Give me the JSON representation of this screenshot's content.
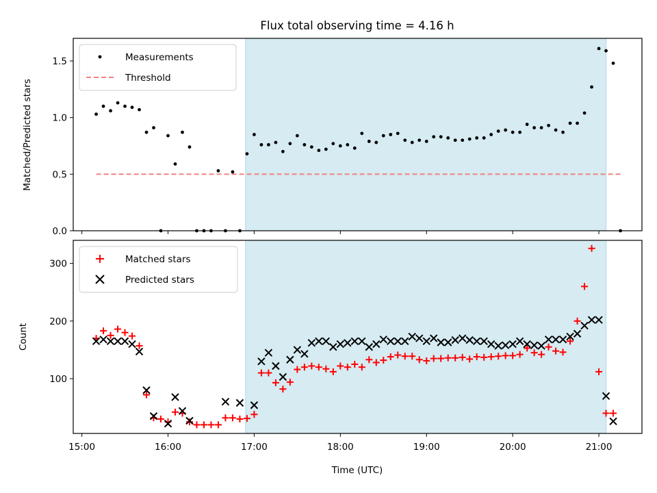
{
  "chart_data": {
    "type": "scatter",
    "title": "Flux total observing time = 4.16 h",
    "highlight_color": "#add8e6",
    "x_ticks": [
      "15:00",
      "16:00",
      "17:00",
      "18:00",
      "19:00",
      "20:00",
      "21:00"
    ],
    "xlabel": "Time (UTC)",
    "xlim": [
      "14:54",
      "21:30"
    ],
    "shaded_interval": [
      "16:54",
      "21:05"
    ],
    "panels": [
      {
        "ylabel": "Matched/Predicted stars",
        "ylim": [
          0,
          1.7
        ],
        "y_ticks": [
          "0.0",
          "0.5",
          "1.0",
          "1.5"
        ],
        "legend_position": "top-left",
        "series": [
          {
            "name": "Measurements",
            "marker": "dot",
            "color": "#000000",
            "points": [
              [
                "15:10",
                1.03
              ],
              [
                "15:15",
                1.1
              ],
              [
                "15:20",
                1.06
              ],
              [
                "15:25",
                1.13
              ],
              [
                "15:30",
                1.1
              ],
              [
                "15:35",
                1.09
              ],
              [
                "15:40",
                1.07
              ],
              [
                "15:45",
                0.87
              ],
              [
                "15:50",
                0.91
              ],
              [
                "15:55",
                0.0
              ],
              [
                "16:00",
                0.84
              ],
              [
                "16:05",
                0.59
              ],
              [
                "16:10",
                0.87
              ],
              [
                "16:15",
                0.74
              ],
              [
                "16:20",
                0.0
              ],
              [
                "16:25",
                0.0
              ],
              [
                "16:30",
                0.0
              ],
              [
                "16:35",
                0.53
              ],
              [
                "16:40",
                0.0
              ],
              [
                "16:45",
                0.52
              ],
              [
                "16:50",
                0.0
              ],
              [
                "16:55",
                0.68
              ],
              [
                "17:00",
                0.85
              ],
              [
                "17:05",
                0.76
              ],
              [
                "17:10",
                0.76
              ],
              [
                "17:15",
                0.78
              ],
              [
                "17:20",
                0.7
              ],
              [
                "17:25",
                0.77
              ],
              [
                "17:30",
                0.84
              ],
              [
                "17:35",
                0.76
              ],
              [
                "17:40",
                0.74
              ],
              [
                "17:45",
                0.71
              ],
              [
                "17:50",
                0.72
              ],
              [
                "17:55",
                0.77
              ],
              [
                "18:00",
                0.75
              ],
              [
                "18:05",
                0.76
              ],
              [
                "18:10",
                0.73
              ],
              [
                "18:15",
                0.86
              ],
              [
                "18:20",
                0.79
              ],
              [
                "18:25",
                0.78
              ],
              [
                "18:30",
                0.84
              ],
              [
                "18:35",
                0.85
              ],
              [
                "18:40",
                0.86
              ],
              [
                "18:45",
                0.8
              ],
              [
                "18:50",
                0.78
              ],
              [
                "18:55",
                0.8
              ],
              [
                "19:00",
                0.79
              ],
              [
                "19:05",
                0.83
              ],
              [
                "19:10",
                0.83
              ],
              [
                "19:15",
                0.82
              ],
              [
                "19:20",
                0.8
              ],
              [
                "19:25",
                0.8
              ],
              [
                "19:30",
                0.81
              ],
              [
                "19:35",
                0.82
              ],
              [
                "19:40",
                0.82
              ],
              [
                "19:45",
                0.85
              ],
              [
                "19:50",
                0.88
              ],
              [
                "19:55",
                0.89
              ],
              [
                "20:00",
                0.87
              ],
              [
                "20:05",
                0.87
              ],
              [
                "20:10",
                0.94
              ],
              [
                "20:15",
                0.91
              ],
              [
                "20:20",
                0.91
              ],
              [
                "20:25",
                0.93
              ],
              [
                "20:30",
                0.89
              ],
              [
                "20:35",
                0.87
              ],
              [
                "20:40",
                0.95
              ],
              [
                "20:45",
                0.95
              ],
              [
                "20:50",
                1.04
              ],
              [
                "20:55",
                1.27
              ],
              [
                "21:00",
                1.61
              ],
              [
                "21:05",
                1.59
              ],
              [
                "21:10",
                1.48
              ],
              [
                "21:15",
                0.0
              ]
            ]
          },
          {
            "name": "Threshold",
            "marker": "dashed-line",
            "color": "#f08080",
            "value": 0.5,
            "x_range": [
              "15:10",
              "21:15"
            ]
          }
        ]
      },
      {
        "ylabel": "Count",
        "ylim": [
          5,
          340
        ],
        "y_ticks": [
          "100",
          "200",
          "300"
        ],
        "legend_position": "top-left",
        "series": [
          {
            "name": "Matched stars",
            "marker": "plus",
            "color": "#ff0000",
            "points": [
              [
                "15:10",
                170
              ],
              [
                "15:15",
                183
              ],
              [
                "15:20",
                175
              ],
              [
                "15:25",
                186
              ],
              [
                "15:30",
                180
              ],
              [
                "15:35",
                174
              ],
              [
                "15:40",
                157
              ],
              [
                "15:45",
                72
              ],
              [
                "15:50",
                32
              ],
              [
                "15:55",
                30
              ],
              [
                "16:00",
                25
              ],
              [
                "16:05",
                42
              ],
              [
                "16:10",
                40
              ],
              [
                "16:15",
                25
              ],
              [
                "16:20",
                20
              ],
              [
                "16:25",
                20
              ],
              [
                "16:30",
                20
              ],
              [
                "16:35",
                20
              ],
              [
                "16:40",
                32
              ],
              [
                "16:45",
                32
              ],
              [
                "16:50",
                30
              ],
              [
                "16:55",
                31
              ],
              [
                "17:00",
                38
              ],
              [
                "17:05",
                110
              ],
              [
                "17:10",
                110
              ],
              [
                "17:15",
                93
              ],
              [
                "17:20",
                82
              ],
              [
                "17:25",
                94
              ],
              [
                "17:30",
                116
              ],
              [
                "17:35",
                120
              ],
              [
                "17:40",
                122
              ],
              [
                "17:45",
                120
              ],
              [
                "17:50",
                117
              ],
              [
                "17:55",
                112
              ],
              [
                "18:00",
                122
              ],
              [
                "18:05",
                120
              ],
              [
                "18:10",
                125
              ],
              [
                "18:15",
                120
              ],
              [
                "18:20",
                133
              ],
              [
                "18:25",
                128
              ],
              [
                "18:30",
                132
              ],
              [
                "18:35",
                138
              ],
              [
                "18:40",
                141
              ],
              [
                "18:45",
                139
              ],
              [
                "18:50",
                139
              ],
              [
                "18:55",
                133
              ],
              [
                "19:00",
                131
              ],
              [
                "19:05",
                135
              ],
              [
                "19:10",
                135
              ],
              [
                "19:15",
                136
              ],
              [
                "19:20",
                136
              ],
              [
                "19:25",
                137
              ],
              [
                "19:30",
                134
              ],
              [
                "19:35",
                138
              ],
              [
                "19:40",
                137
              ],
              [
                "19:45",
                138
              ],
              [
                "19:50",
                139
              ],
              [
                "19:55",
                140
              ],
              [
                "20:00",
                140
              ],
              [
                "20:05",
                142
              ],
              [
                "20:10",
                153
              ],
              [
                "20:15",
                145
              ],
              [
                "20:20",
                142
              ],
              [
                "20:25",
                155
              ],
              [
                "20:30",
                148
              ],
              [
                "20:35",
                146
              ],
              [
                "20:40",
                165
              ],
              [
                "20:45",
                200
              ],
              [
                "20:50",
                260
              ],
              [
                "20:55",
                326
              ],
              [
                "21:00",
                112
              ],
              [
                "21:05",
                40
              ],
              [
                "21:10",
                40
              ]
            ]
          },
          {
            "name": "Predicted stars",
            "marker": "x",
            "color": "#000000",
            "points": [
              [
                "15:10",
                165
              ],
              [
                "15:15",
                168
              ],
              [
                "15:20",
                165
              ],
              [
                "15:25",
                165
              ],
              [
                "15:30",
                165
              ],
              [
                "15:35",
                160
              ],
              [
                "15:40",
                147
              ],
              [
                "15:45",
                80
              ],
              [
                "15:50",
                35
              ],
              [
                "16:00",
                22
              ],
              [
                "16:05",
                68
              ],
              [
                "16:10",
                44
              ],
              [
                "16:15",
                27
              ],
              [
                "16:40",
                60
              ],
              [
                "16:50",
                58
              ],
              [
                "17:00",
                54
              ],
              [
                "17:05",
                130
              ],
              [
                "17:10",
                145
              ],
              [
                "17:15",
                122
              ],
              [
                "17:20",
                103
              ],
              [
                "17:25",
                133
              ],
              [
                "17:30",
                150
              ],
              [
                "17:35",
                143
              ],
              [
                "17:40",
                162
              ],
              [
                "17:45",
                165
              ],
              [
                "17:50",
                165
              ],
              [
                "17:55",
                155
              ],
              [
                "18:00",
                160
              ],
              [
                "18:05",
                162
              ],
              [
                "18:10",
                165
              ],
              [
                "18:15",
                165
              ],
              [
                "18:20",
                155
              ],
              [
                "18:25",
                160
              ],
              [
                "18:30",
                168
              ],
              [
                "18:35",
                165
              ],
              [
                "18:40",
                165
              ],
              [
                "18:45",
                165
              ],
              [
                "18:50",
                173
              ],
              [
                "18:55",
                170
              ],
              [
                "19:00",
                165
              ],
              [
                "19:05",
                170
              ],
              [
                "19:10",
                163
              ],
              [
                "19:15",
                163
              ],
              [
                "19:20",
                167
              ],
              [
                "19:25",
                170
              ],
              [
                "19:30",
                167
              ],
              [
                "19:35",
                165
              ],
              [
                "19:40",
                165
              ],
              [
                "19:45",
                160
              ],
              [
                "19:50",
                157
              ],
              [
                "19:55",
                158
              ],
              [
                "20:00",
                160
              ],
              [
                "20:05",
                165
              ],
              [
                "20:10",
                160
              ],
              [
                "20:15",
                158
              ],
              [
                "20:20",
                157
              ],
              [
                "20:25",
                168
              ],
              [
                "20:30",
                168
              ],
              [
                "20:35",
                168
              ],
              [
                "20:40",
                173
              ],
              [
                "20:45",
                178
              ],
              [
                "20:50",
                192
              ],
              [
                "20:55",
                202
              ],
              [
                "21:00",
                202
              ],
              [
                "21:05",
                70
              ],
              [
                "21:10",
                26
              ]
            ]
          }
        ]
      }
    ]
  }
}
